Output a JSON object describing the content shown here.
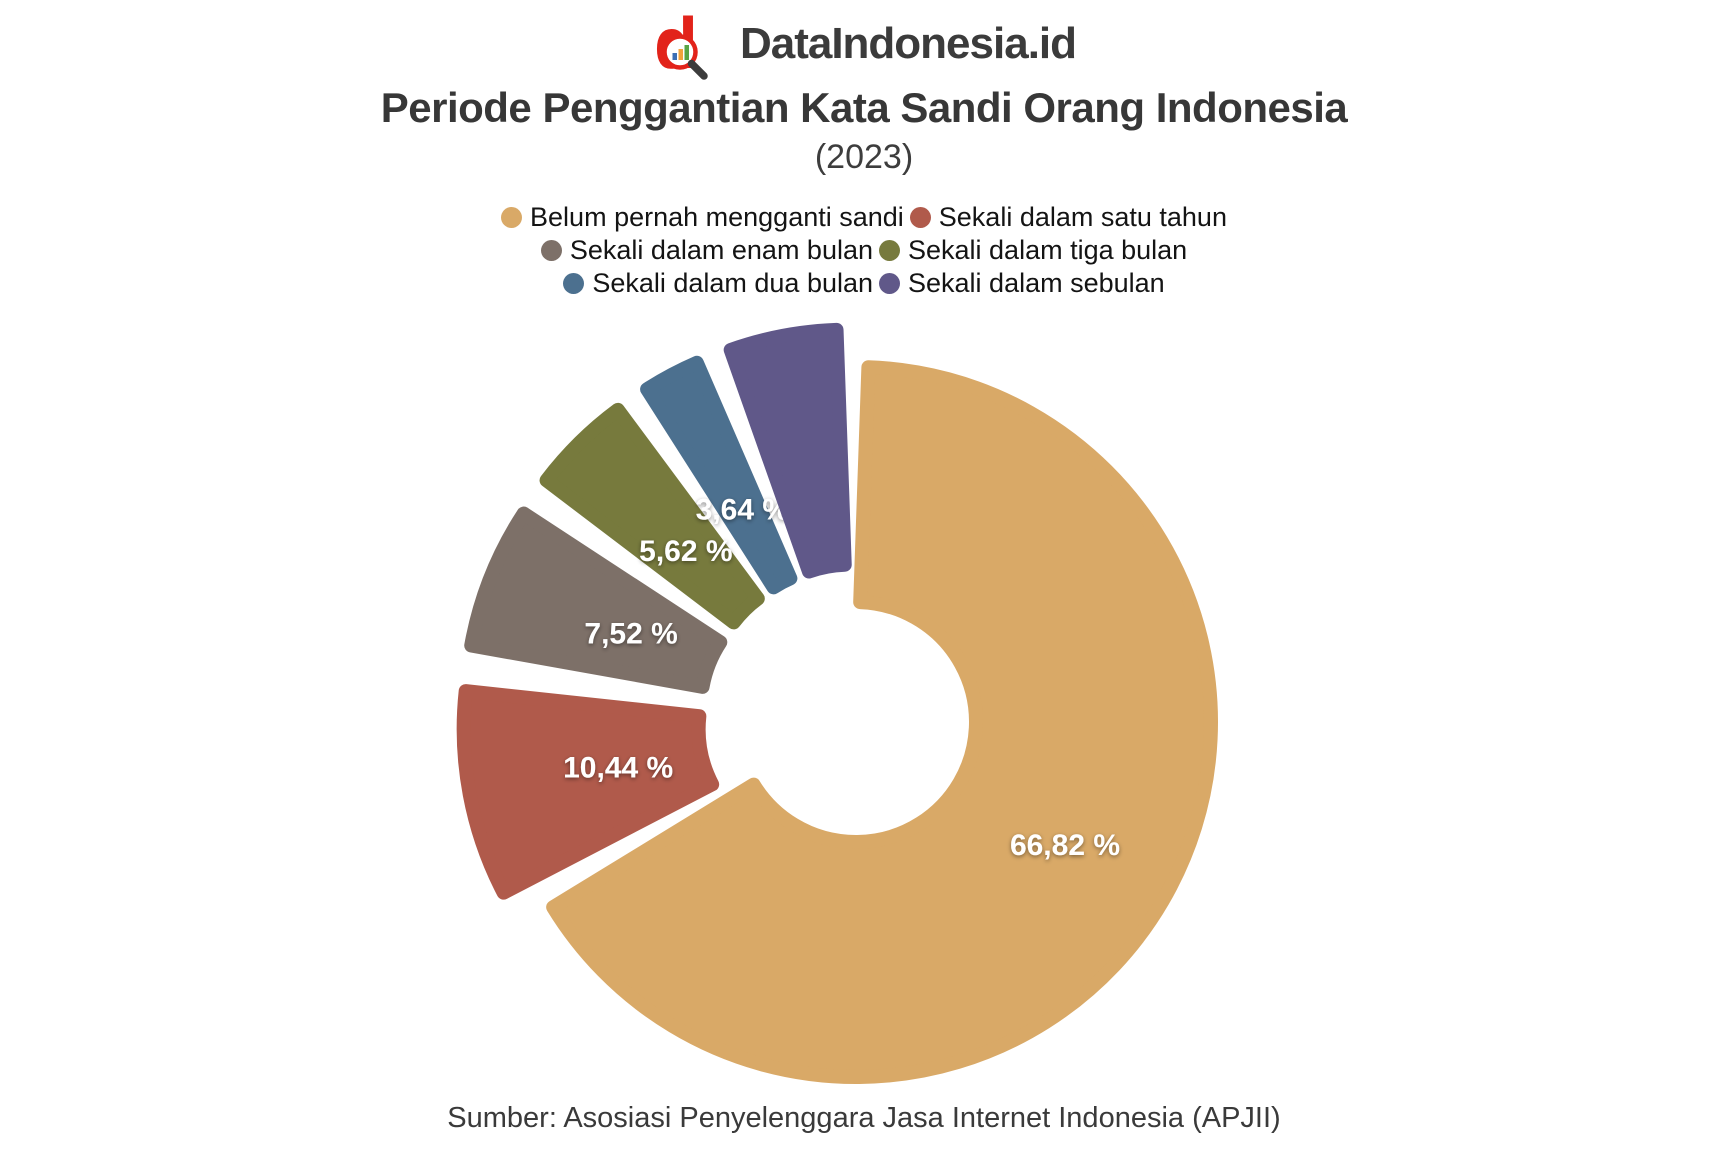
{
  "logo": {
    "text": "DataIndonesia.id",
    "brand_red": "#E2231A"
  },
  "title": "Periode Penggantian Kata Sandi Orang Indonesia",
  "subtitle": "(2023)",
  "legend": [
    {
      "label": "Belum pernah mengganti sandi",
      "color": "#D9A967"
    },
    {
      "label": "Sekali dalam satu tahun",
      "color": "#B05A4B"
    },
    {
      "label": "Sekali dalam enam bulan",
      "color": "#7D7068"
    },
    {
      "label": "Sekali dalam tiga bulan",
      "color": "#777A3D"
    },
    {
      "label": "Sekali dalam dua bulan",
      "color": "#4C708F"
    },
    {
      "label": "Sekali dalam sebulan",
      "color": "#605889"
    }
  ],
  "chart_data": {
    "type": "pie",
    "donut": true,
    "title": "Periode Penggantian Kata Sandi Orang Indonesia (2023)",
    "unit": "%",
    "start_angle": "top",
    "direction": "clockwise",
    "legend_position": "top",
    "categories": [
      "Belum pernah mengganti sandi",
      "Sekali dalam satu tahun",
      "Sekali dalam enam bulan",
      "Sekali dalam tiga bulan",
      "Sekali dalam dua bulan",
      "Sekali dalam sebulan"
    ],
    "values": [
      66.82,
      10.44,
      7.52,
      5.62,
      3.64,
      5.96
    ],
    "colors": [
      "#D9A967",
      "#B05A4B",
      "#7D7068",
      "#777A3D",
      "#4C708F",
      "#605889"
    ],
    "slice_labels": [
      "66,82 %",
      "10,44 %",
      "7,52 %",
      "5,62 %",
      "3,64 %",
      ""
    ],
    "label_visible": [
      true,
      true,
      true,
      true,
      true,
      false
    ]
  },
  "source": "Sumber: Asosiasi Penyelenggara Jasa Internet Indonesia (APJII)"
}
